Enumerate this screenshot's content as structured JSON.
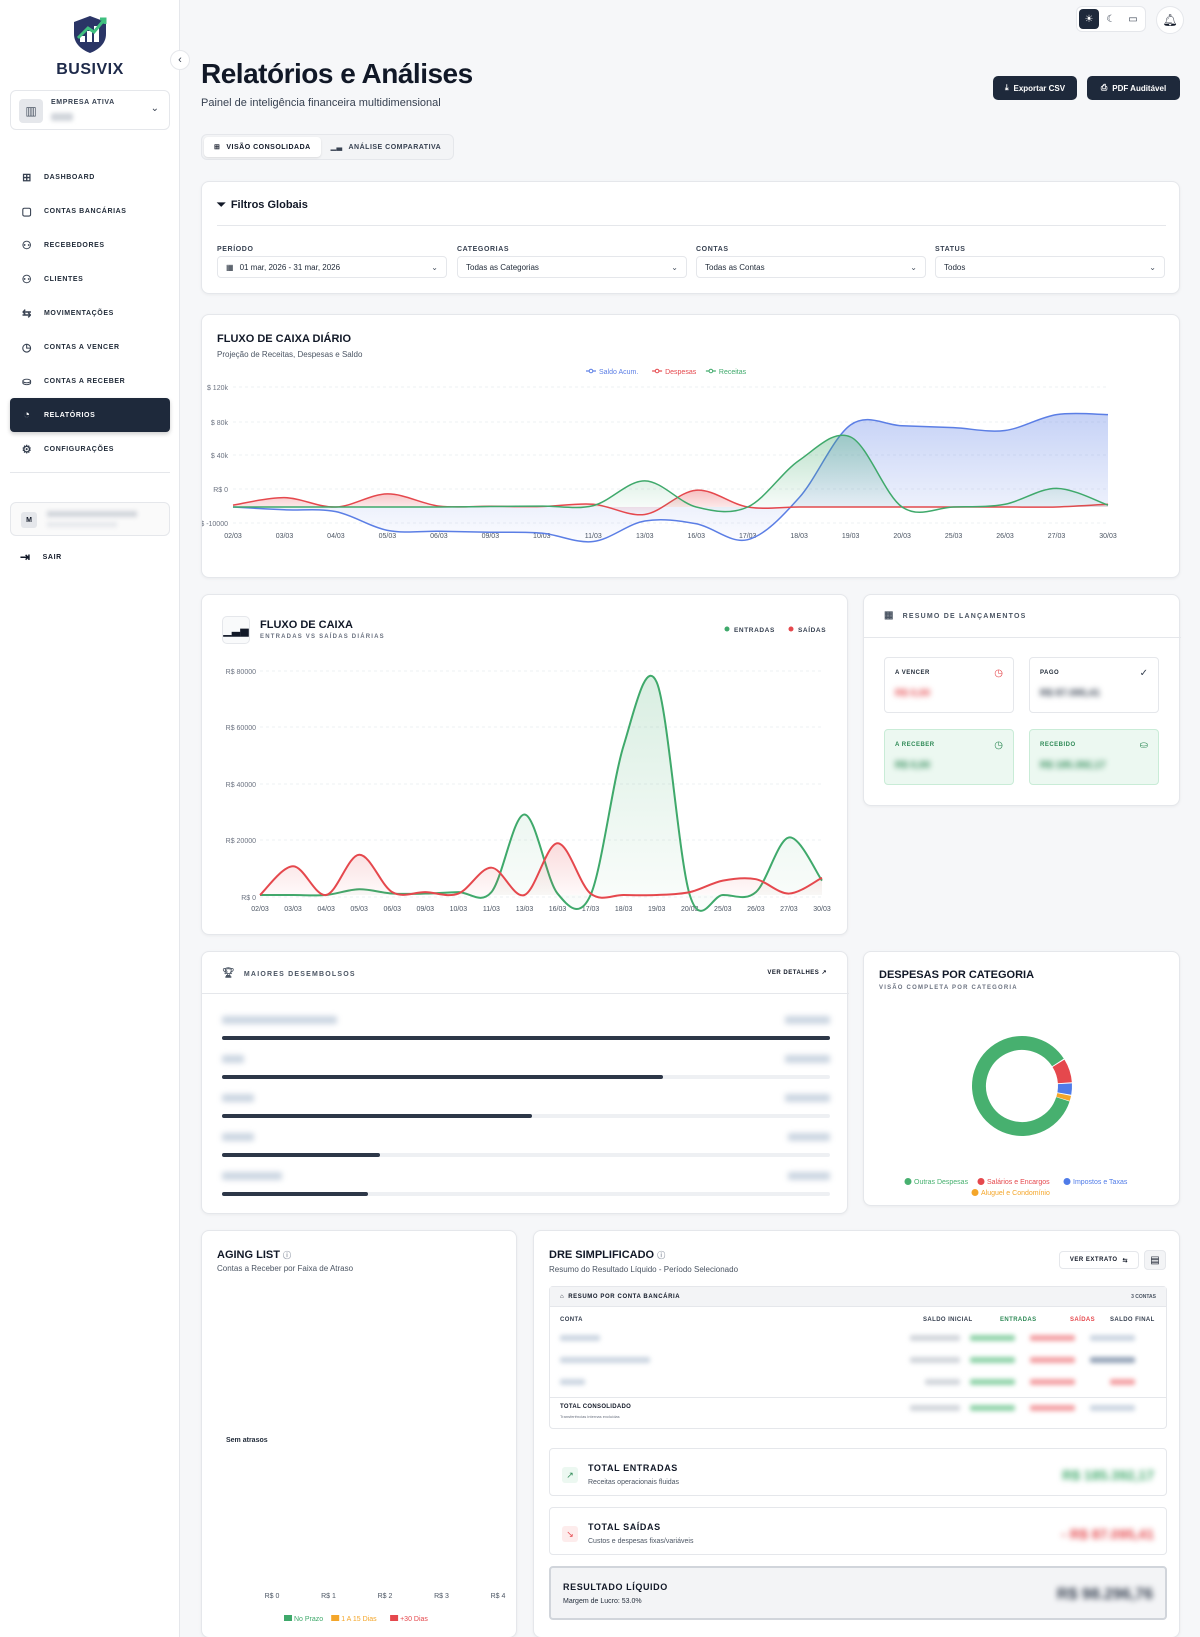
{
  "brand": {
    "name": "BUSIVIX"
  },
  "company": {
    "label": "EMPRESA ATIVA",
    "value": "•••"
  },
  "nav": [
    {
      "label": "DASHBOARD",
      "icon": "grid-icon"
    },
    {
      "label": "CONTAS BANCÁRIAS",
      "icon": "wallet-icon"
    },
    {
      "label": "RECEBEDORES",
      "icon": "users-icon"
    },
    {
      "label": "CLIENTES",
      "icon": "user-icon"
    },
    {
      "label": "MOVIMENTAÇÕES",
      "icon": "arrows-icon"
    },
    {
      "label": "CONTAS A VENCER",
      "icon": "clock-icon"
    },
    {
      "label": "CONTAS A RECEBER",
      "icon": "hand-coins-icon"
    },
    {
      "label": "RELATÓRIOS",
      "icon": "pie-chart-icon",
      "active": true
    },
    {
      "label": "CONFIGURAÇÕES",
      "icon": "gear-icon"
    }
  ],
  "user": {
    "initial": "M"
  },
  "logout": "SAIR",
  "header": {
    "title": "Relatórios e Análises",
    "subtitle": "Painel de inteligência financeira multidimensional",
    "export_csv": "Exportar CSV",
    "pdf": "PDF Auditável"
  },
  "tabs": [
    {
      "label": "VISÃO CONSOLIDADA",
      "active": true
    },
    {
      "label": "ANÁLISE COMPARATIVA",
      "active": false
    }
  ],
  "filters": {
    "title": "Filtros Globais",
    "periodo": {
      "label": "PERÍODO",
      "value": "01 mar, 2026 - 31 mar, 2026"
    },
    "categorias": {
      "label": "CATEGORIAS",
      "value": "Todas as Categorias"
    },
    "contas": {
      "label": "CONTAS",
      "value": "Todas as Contas"
    },
    "status": {
      "label": "STATUS",
      "value": "Todos"
    }
  },
  "chart_data": [
    {
      "type": "area",
      "title": "FLUXO DE CAIXA DIÁRIO",
      "subtitle": "Projeção de Receitas, Despesas e Saldo",
      "categories": [
        "02/03",
        "03/03",
        "04/03",
        "05/03",
        "06/03",
        "09/03",
        "10/03",
        "11/03",
        "13/03",
        "16/03",
        "17/03",
        "18/03",
        "19/03",
        "20/03",
        "25/03",
        "26/03",
        "27/03",
        "30/03"
      ],
      "y_ticks": [
        "$ 120k",
        "$ 80k",
        "$ 40k",
        "R$ 0",
        "R$ -10000"
      ],
      "ylim": [
        -30000,
        120000
      ],
      "legend": "top",
      "series": [
        {
          "name": "Saldo Acum.",
          "color": "#5b7ee5",
          "values": [
            0,
            -3000,
            -5000,
            -25000,
            -26000,
            -27000,
            -28000,
            -37000,
            -15000,
            -18000,
            -35000,
            10000,
            88000,
            87000,
            85000,
            82000,
            99000,
            99000
          ]
        },
        {
          "name": "Despesas",
          "color": "#e5484d",
          "values": [
            2000,
            10000,
            0,
            14000,
            1000,
            800,
            500,
            3000,
            -8000,
            18000,
            0,
            0,
            0,
            0,
            0,
            0,
            0,
            3000
          ]
        },
        {
          "name": "Receitas",
          "color": "#3fa96b",
          "values": [
            0,
            0,
            0,
            0,
            0,
            500,
            1000,
            1500,
            28000,
            0,
            0,
            50000,
            75000,
            0,
            0,
            3000,
            20000,
            2000
          ]
        }
      ]
    },
    {
      "type": "area",
      "title": "FLUXO DE CAIXA",
      "subtitle": "ENTRADAS VS SAÍDAS DIÁRIAS",
      "categories": [
        "02/03",
        "03/03",
        "04/03",
        "05/03",
        "06/03",
        "09/03",
        "10/03",
        "11/03",
        "13/03",
        "16/03",
        "17/03",
        "18/03",
        "19/03",
        "20/03",
        "25/03",
        "26/03",
        "27/03",
        "30/03"
      ],
      "y_ticks": [
        "R$ 80000",
        "R$ 60000",
        "R$ 40000",
        "R$ 20000",
        "R$ 0"
      ],
      "ylim": [
        0,
        80000
      ],
      "legend": "top-right",
      "series": [
        {
          "name": "ENTRADAS",
          "color": "#3fa96b",
          "values": [
            0,
            0,
            0,
            2000,
            500,
            500,
            1000,
            1000,
            28000,
            500,
            0,
            52000,
            74000,
            0,
            0,
            1000,
            20000,
            5000
          ]
        },
        {
          "name": "SAÍDAS",
          "color": "#e5484d",
          "values": [
            0,
            10000,
            0,
            14000,
            1000,
            1000,
            500,
            9500,
            0,
            18000,
            500,
            0,
            0,
            1000,
            5000,
            5500,
            500,
            6000
          ]
        }
      ]
    },
    {
      "type": "pie",
      "title": "DESPESAS POR CATEGORIA",
      "subtitle": "VISÃO COMPLETA POR CATEGORIA",
      "categories": [
        "Outras Despesas",
        "Salários e Encargos",
        "Impostos e Taxas",
        "Aluguel e Condomínio"
      ],
      "values": [
        86,
        8,
        4,
        2
      ],
      "colors": [
        "#47b06f",
        "#e5484d",
        "#4f7be8",
        "#f4a62a"
      ],
      "legend": "bottom"
    },
    {
      "type": "bar",
      "title": "AGING LIST",
      "subtitle": "Contas a Receber por Faixa de Atraso",
      "categories": [
        "Sem atrasos"
      ],
      "x_ticks": [
        "R$ 0",
        "R$ 1",
        "R$ 2",
        "R$ 3",
        "R$ 4"
      ],
      "xlim": [
        0,
        4
      ],
      "series": [
        {
          "name": "No Prazo",
          "color": "#3fa96b",
          "values": [
            0
          ]
        },
        {
          "name": "1 A 15 Dias",
          "color": "#f4a62a",
          "values": [
            0
          ]
        },
        {
          "name": "+30 Dias",
          "color": "#e5484d",
          "values": [
            0
          ]
        }
      ],
      "legend": "bottom"
    }
  ],
  "resumo": {
    "title": "RESUMO DE LANÇAMENTOS",
    "a_vencer": {
      "label": "A VENCER",
      "value": "R$ 0,00"
    },
    "pago": {
      "label": "PAGO",
      "value": "R$ 87.095,41"
    },
    "a_receber": {
      "label": "A RECEBER",
      "value": "R$ 0,00"
    },
    "recebido": {
      "label": "RECEBIDO",
      "value": "R$ 185.392,17"
    }
  },
  "desembolsos": {
    "title": "MAIORES DESEMBOLSOS",
    "link": "VER DETALHES",
    "items": [
      {
        "pct": 100
      },
      {
        "pct": 72.5
      },
      {
        "pct": 51
      },
      {
        "pct": 26
      },
      {
        "pct": 24
      }
    ]
  },
  "dre": {
    "title": "DRE SIMPLIFICADO",
    "subtitle": "Resumo do Resultado Líquido - Período Selecionado",
    "extrato": "VER EXTRATO",
    "table_title": "RESUMO POR CONTA BANCÁRIA",
    "count": "3 CONTAS",
    "cols": {
      "conta": "CONTA",
      "saldo_inicial": "SALDO INICIAL",
      "entradas": "ENTRADAS",
      "saidas": "SAÍDAS",
      "saldo_final": "SALDO FINAL"
    },
    "total_label": "TOTAL CONSOLIDADO",
    "total_note": "Transferências internas excluídas",
    "entradas": {
      "title": "TOTAL ENTRADAS",
      "sub": "Receitas operacionais fluidas",
      "value": "R$ 185.392,17"
    },
    "saidas": {
      "title": "TOTAL SAÍDAS",
      "sub": "Custos e despesas fixas/variáveis",
      "value": "- R$ 87.095,41"
    },
    "resultado": {
      "title": "RESULTADO LÍQUIDO",
      "sub": "Margem de Lucro: 53.0%",
      "value": "R$ 98.296,76"
    }
  },
  "aging_empty": "Sem atrasos"
}
